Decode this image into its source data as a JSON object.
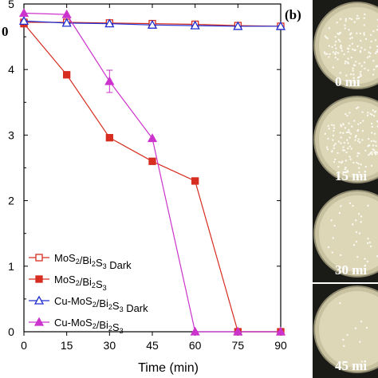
{
  "chart_data": {
    "type": "line",
    "x": [
      0,
      15,
      30,
      45,
      60,
      75,
      90
    ],
    "xlabel": "Time (min)",
    "ylabel": "",
    "xlim": [
      0,
      90
    ],
    "ylim": [
      0,
      5
    ],
    "x_ticks": [
      "0",
      "15",
      "30",
      "45",
      "60",
      "75",
      "90"
    ],
    "y_ticks": [
      "0",
      "1",
      "2",
      "3",
      "4",
      "5"
    ],
    "legend_placement": "bottom-left",
    "grid": false,
    "panel_label_a": "0",
    "series": [
      {
        "name": "MoS₂/Bi₂S₃ Dark",
        "name_parts": [
          [
            "MoS",
            ""
          ],
          [
            "2",
            "sub"
          ],
          [
            "/Bi",
            ""
          ],
          [
            "2",
            "sub"
          ],
          [
            "S",
            ""
          ],
          [
            "3",
            "sub"
          ],
          [
            " Dark",
            ""
          ]
        ],
        "color": "#d62d20",
        "marker": "square",
        "filled": false,
        "values": [
          4.72,
          4.72,
          4.71,
          4.7,
          4.69,
          4.67,
          4.66
        ]
      },
      {
        "name": "MoS₂/Bi₂S₃",
        "name_parts": [
          [
            "MoS",
            ""
          ],
          [
            "2",
            "sub"
          ],
          [
            "/Bi",
            ""
          ],
          [
            "2",
            "sub"
          ],
          [
            "S",
            ""
          ],
          [
            "3",
            "sub"
          ]
        ],
        "color": "#d62d20",
        "marker": "square",
        "filled": true,
        "values": [
          4.7,
          3.92,
          2.96,
          2.6,
          2.3,
          0,
          0
        ]
      },
      {
        "name": "Cu-MoS₂/Bi₂S₃ Dark",
        "name_parts": [
          [
            "Cu-MoS",
            ""
          ],
          [
            "2",
            "sub"
          ],
          [
            "/Bi",
            ""
          ],
          [
            "2",
            "sub"
          ],
          [
            "S",
            ""
          ],
          [
            "3",
            "sub"
          ],
          [
            " Dark",
            ""
          ]
        ],
        "color": "#1f2fd1",
        "marker": "triangle",
        "filled": false,
        "values": [
          4.74,
          4.71,
          4.7,
          4.68,
          4.67,
          4.66,
          4.66
        ]
      },
      {
        "name": "Cu-MoS₂/Bi₂S₃",
        "name_parts": [
          [
            "Cu-MoS",
            ""
          ],
          [
            "2",
            "sub"
          ],
          [
            "/Bi",
            ""
          ],
          [
            "2",
            "sub"
          ],
          [
            "S",
            ""
          ],
          [
            "3",
            "sub"
          ]
        ],
        "color": "#cc33cc",
        "marker": "triangle",
        "filled": true,
        "values": [
          4.86,
          4.84,
          3.82,
          2.95,
          0,
          0,
          0
        ]
      }
    ],
    "error_bar": {
      "series": 3,
      "index": 2,
      "err": 0.17
    }
  },
  "panel_b": {
    "label": "(b)",
    "photos": [
      {
        "label": "0 mi",
        "colonies": "many"
      },
      {
        "label": "15 mi",
        "colonies": "many"
      },
      {
        "label": "30 mi",
        "colonies": "few"
      },
      {
        "label": "45 mi",
        "colonies": "very few"
      }
    ]
  }
}
